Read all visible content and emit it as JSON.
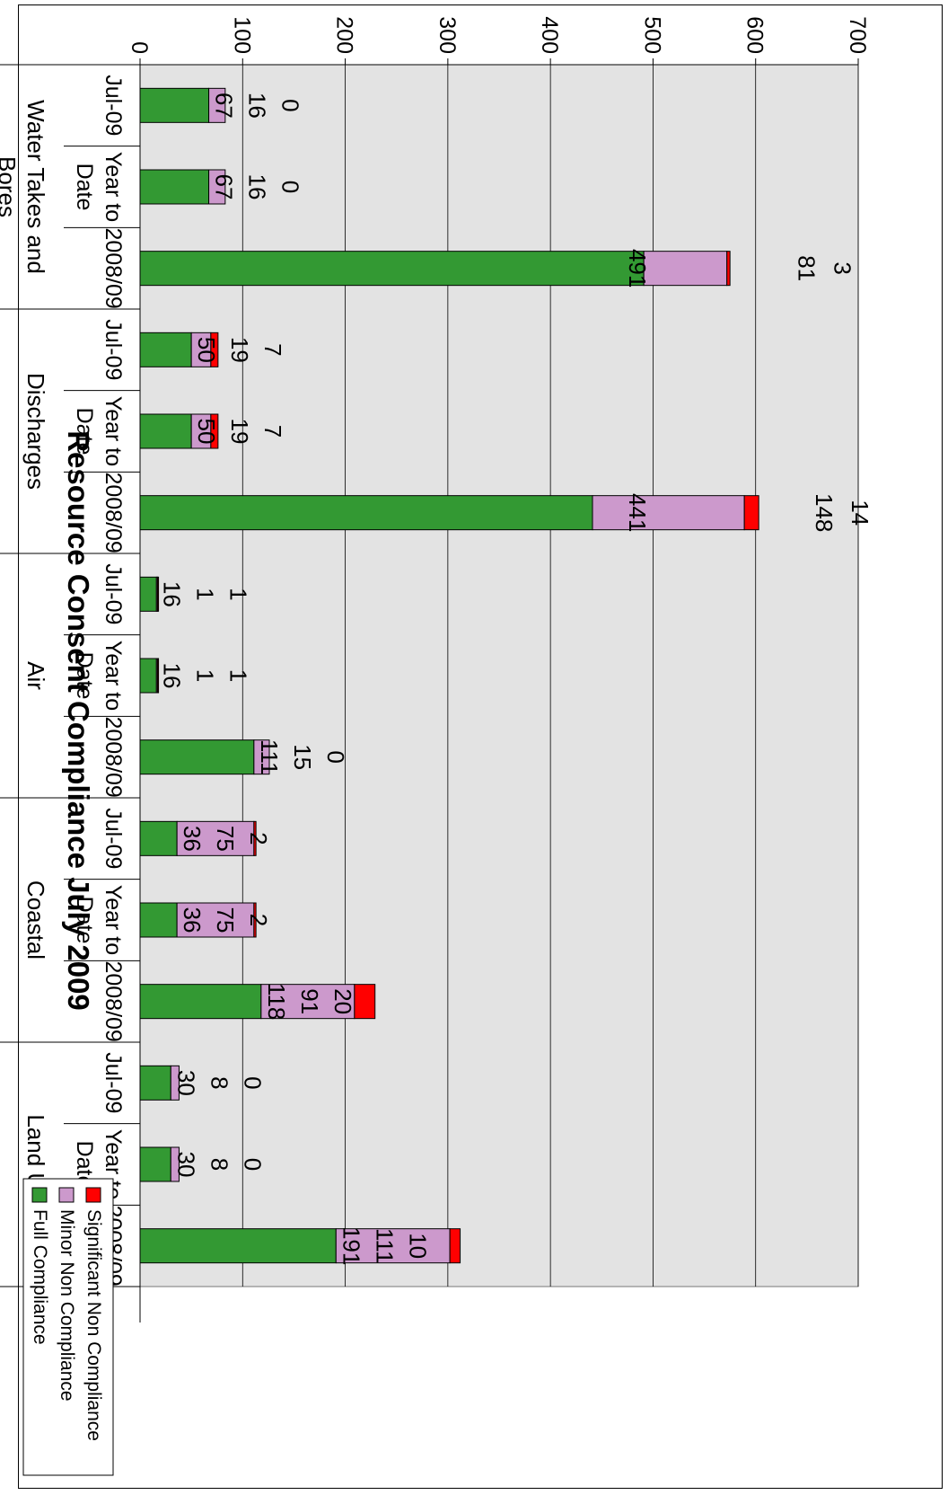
{
  "chart_data": {
    "type": "bar",
    "stacked": true,
    "orientation": "rotated-90-clockwise",
    "title": "Resource Consent Compliance July 2009",
    "ylim": [
      0,
      700
    ],
    "yticks": [
      0,
      100,
      200,
      300,
      400,
      500,
      600,
      700
    ],
    "gridlines": true,
    "legend_position": "top-right",
    "groups": [
      {
        "name": "Water Takes and Bores",
        "categories": [
          "Jul-09",
          "Year to Date",
          "2008/09"
        ]
      },
      {
        "name": "Discharges",
        "categories": [
          "Jul-09",
          "Year to Date",
          "2008/09"
        ]
      },
      {
        "name": "Air",
        "categories": [
          "Jul-09",
          "Year to Date",
          "2008/09"
        ]
      },
      {
        "name": "Coastal",
        "categories": [
          "Jul-09",
          "Year to Date",
          "2008/09"
        ]
      },
      {
        "name": "Land Use",
        "categories": [
          "Jul-09",
          "Year to Date",
          "2008/09"
        ]
      }
    ],
    "series": [
      {
        "name": "Full Compliance",
        "color": "#339933",
        "values": [
          67,
          67,
          491,
          50,
          50,
          441,
          16,
          16,
          111,
          36,
          36,
          118,
          30,
          30,
          191
        ]
      },
      {
        "name": "Minor Non Compliance",
        "color": "#cc99cc",
        "values": [
          16,
          16,
          81,
          19,
          19,
          148,
          1,
          1,
          15,
          75,
          75,
          91,
          8,
          8,
          111
        ]
      },
      {
        "name": "Significant Non Compliance",
        "color": "#ff0000",
        "values": [
          0,
          0,
          3,
          7,
          7,
          14,
          1,
          1,
          0,
          2,
          2,
          20,
          0,
          0,
          10
        ]
      }
    ]
  }
}
